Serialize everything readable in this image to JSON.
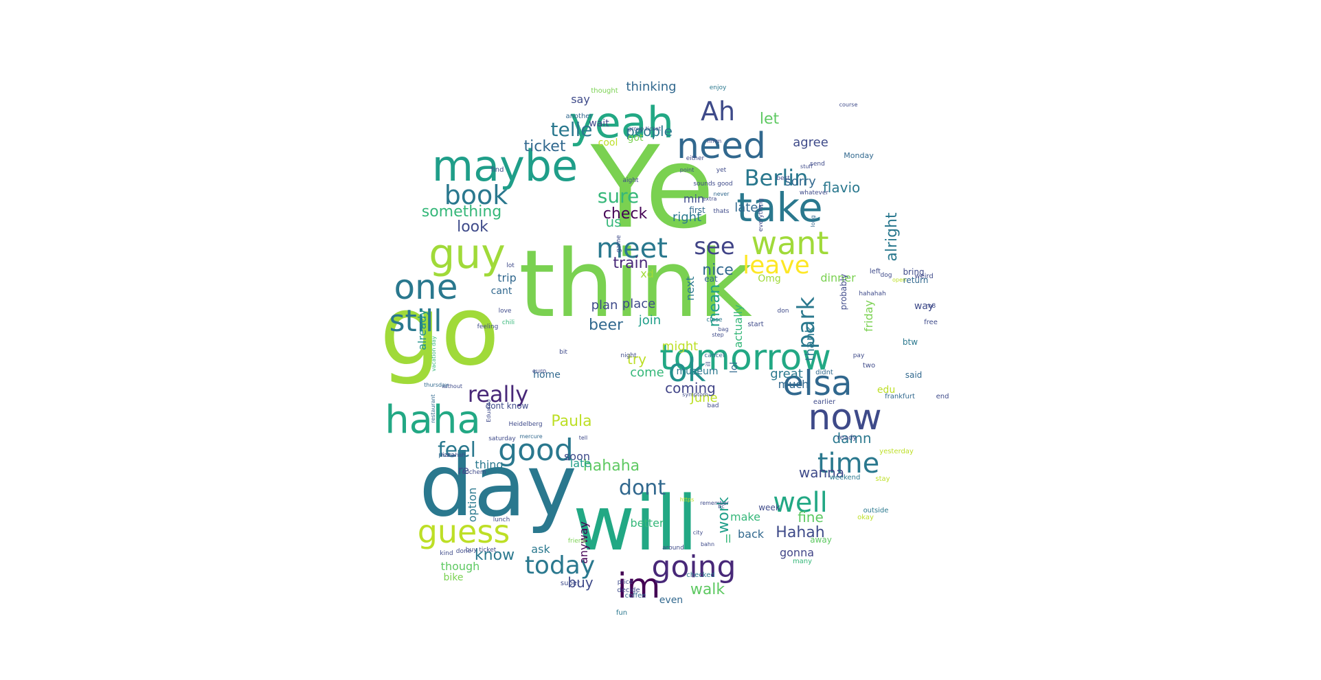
{
  "words": [
    {
      "text": "Ye",
      "color": "#7ad151"
    },
    {
      "text": "think",
      "color": "#7ad151"
    },
    {
      "text": "go",
      "color": "#a0da39"
    },
    {
      "text": "day",
      "color": "#2a788e"
    },
    {
      "text": "will",
      "color": "#22a884"
    },
    {
      "text": "yeah",
      "color": "#22a884"
    },
    {
      "text": "maybe",
      "color": "#1f9e89"
    },
    {
      "text": "take",
      "color": "#2a788e"
    },
    {
      "text": "guy",
      "color": "#a0da39"
    },
    {
      "text": "one",
      "color": "#2a788e"
    },
    {
      "text": "tomorrow",
      "color": "#22a884"
    },
    {
      "text": "haha",
      "color": "#22a884"
    },
    {
      "text": "now",
      "color": "#3e4a89"
    },
    {
      "text": "elsa",
      "color": "#31688e"
    },
    {
      "text": "need",
      "color": "#31688e"
    },
    {
      "text": "want",
      "color": "#a0da39"
    },
    {
      "text": "im",
      "color": "#440154"
    },
    {
      "text": "still",
      "color": "#2a788e"
    },
    {
      "text": "guess",
      "color": "#bddf26"
    },
    {
      "text": "ok",
      "color": "#21918c"
    },
    {
      "text": "meet",
      "color": "#2a788e"
    },
    {
      "text": "good",
      "color": "#2a788e"
    },
    {
      "text": "going",
      "color": "#482878"
    },
    {
      "text": "well",
      "color": "#22a884"
    },
    {
      "text": "time",
      "color": "#2a788e"
    },
    {
      "text": "Ah",
      "color": "#3e4a89"
    },
    {
      "text": "book",
      "color": "#2a788e"
    },
    {
      "text": "today",
      "color": "#2a788e"
    },
    {
      "text": "leave",
      "color": "#fde725"
    },
    {
      "text": "Berlin",
      "color": "#2a788e"
    },
    {
      "text": "see",
      "color": "#414487"
    },
    {
      "text": "park",
      "color": "#2a788e"
    },
    {
      "text": "really",
      "color": "#482878"
    },
    {
      "text": "feel",
      "color": "#2a788e"
    },
    {
      "text": "telle",
      "color": "#2a788e"
    },
    {
      "text": "dont",
      "color": "#31688e"
    },
    {
      "text": "sure",
      "color": "#35b779"
    },
    {
      "text": "hahaha",
      "color": "#5ec962"
    },
    {
      "text": "ticket",
      "color": "#31688e"
    },
    {
      "text": "something",
      "color": "#35b779"
    },
    {
      "text": "Paula",
      "color": "#bddf26"
    },
    {
      "text": "Hahah",
      "color": "#3e4a89"
    },
    {
      "text": "know",
      "color": "#2a788e"
    },
    {
      "text": "walk",
      "color": "#5ec962"
    },
    {
      "text": "alright",
      "color": "#2a788e"
    },
    {
      "text": "nice",
      "color": "#31688e"
    },
    {
      "text": "mean",
      "color": "#1f9e89"
    },
    {
      "text": "train",
      "color": "#482878"
    },
    {
      "text": "look",
      "color": "#3e4a89"
    },
    {
      "text": "beer",
      "color": "#31688e"
    },
    {
      "text": "fine",
      "color": "#5ec962"
    },
    {
      "text": "check",
      "color": "#440154"
    },
    {
      "text": "damn",
      "color": "#2a788e"
    },
    {
      "text": "let",
      "color": "#5ec962"
    },
    {
      "text": "wanna",
      "color": "#3e4a89"
    },
    {
      "text": "work",
      "color": "#1f9e89"
    },
    {
      "text": "coming",
      "color": "#414487"
    },
    {
      "text": "buy",
      "color": "#3e4a89"
    },
    {
      "text": "people",
      "color": "#2a788e"
    },
    {
      "text": "sorry",
      "color": "#31688e"
    },
    {
      "text": "flavio",
      "color": "#2a788e"
    },
    {
      "text": "agree",
      "color": "#3e4a89"
    },
    {
      "text": "try",
      "color": "#bddf26"
    },
    {
      "text": "us",
      "color": "#35b779"
    },
    {
      "text": "thinking",
      "color": "#31688e"
    },
    {
      "text": "say",
      "color": "#3e4a89"
    },
    {
      "text": "later",
      "color": "#31688e"
    },
    {
      "text": "min",
      "color": "#3e4a89"
    },
    {
      "text": "join",
      "color": "#1f9e89"
    },
    {
      "text": "xd",
      "color": "#a0da39"
    },
    {
      "text": "plan",
      "color": "#3e4a89"
    },
    {
      "text": "place",
      "color": "#3e4a89"
    },
    {
      "text": "right",
      "color": "#2a788e"
    },
    {
      "text": "might",
      "color": "#bddf26"
    },
    {
      "text": "come",
      "color": "#35b779"
    },
    {
      "text": "June",
      "color": "#bddf26"
    },
    {
      "text": "great",
      "color": "#2a788e"
    },
    {
      "text": "much",
      "color": "#31688e"
    },
    {
      "text": "thank",
      "color": "#2a788e"
    },
    {
      "text": "friday",
      "color": "#7ad151"
    },
    {
      "text": "dinner",
      "color": "#7ad151"
    },
    {
      "text": "Omg",
      "color": "#a0da39"
    },
    {
      "text": "trip",
      "color": "#31688e"
    },
    {
      "text": "cant",
      "color": "#31688e"
    },
    {
      "text": "soon",
      "color": "#3e4a89"
    },
    {
      "text": "late",
      "color": "#1f9e89"
    },
    {
      "text": "thing",
      "color": "#2a788e"
    },
    {
      "text": "re",
      "color": "#3e4a89"
    },
    {
      "text": "option",
      "color": "#2a788e"
    },
    {
      "text": "already",
      "color": "#21918c"
    },
    {
      "text": "ask",
      "color": "#2a788e"
    },
    {
      "text": "though",
      "color": "#5ec962"
    },
    {
      "text": "bike",
      "color": "#7ad151"
    },
    {
      "text": "anyway",
      "color": "#440154"
    },
    {
      "text": "better",
      "color": "#35b779"
    },
    {
      "text": "make",
      "color": "#35b779"
    },
    {
      "text": "back",
      "color": "#31688e"
    },
    {
      "text": "gonna",
      "color": "#414487"
    },
    {
      "text": "ll",
      "color": "#35b779"
    },
    {
      "text": "even",
      "color": "#31688e"
    },
    {
      "text": "edu",
      "color": "#bddf26"
    },
    {
      "text": "way",
      "color": "#3e4a89"
    },
    {
      "text": "actually",
      "color": "#35b779"
    },
    {
      "text": "next",
      "color": "#2a788e"
    },
    {
      "text": "home",
      "color": "#31688e"
    },
    {
      "text": "said",
      "color": "#31688e"
    },
    {
      "text": "got",
      "color": "#7ad151"
    },
    {
      "text": "wait",
      "color": "#3e4a89"
    },
    {
      "text": "cool",
      "color": "#bddf26"
    },
    {
      "text": "first",
      "color": "#31688e"
    },
    {
      "text": "probably",
      "color": "#3e4a89"
    },
    {
      "text": "bring",
      "color": "#3e4a89"
    },
    {
      "text": "return",
      "color": "#31688e"
    },
    {
      "text": "away",
      "color": "#5ec962"
    },
    {
      "text": "week",
      "color": "#3e4a89"
    },
    {
      "text": "museum",
      "color": "#2a788e"
    },
    {
      "text": "lol",
      "color": "#31688e"
    },
    {
      "text": "eat",
      "color": "#31688e"
    },
    {
      "text": "start",
      "color": "#3e4a89"
    },
    {
      "text": "dont know",
      "color": "#3e4a89"
    },
    {
      "text": "Monday",
      "color": "#31688e"
    },
    {
      "text": "find",
      "color": "#3e4a89"
    },
    {
      "text": "another",
      "color": "#31688e"
    },
    {
      "text": "thought",
      "color": "#7ad151"
    },
    {
      "text": "enjoy",
      "color": "#2a788e"
    },
    {
      "text": "free",
      "color": "#3e4a89"
    },
    {
      "text": "btw",
      "color": "#2a788e"
    },
    {
      "text": "two",
      "color": "#3e4a89"
    },
    {
      "text": "end",
      "color": "#3e4a89"
    },
    {
      "text": "frankfurt",
      "color": "#31688e"
    },
    {
      "text": "earlier",
      "color": "#3e4a89"
    },
    {
      "text": "didnt",
      "color": "#31688e"
    },
    {
      "text": "ready",
      "color": "#3e4a89"
    },
    {
      "text": "yesterday",
      "color": "#bddf26"
    },
    {
      "text": "weekend",
      "color": "#2a788e"
    },
    {
      "text": "stay",
      "color": "#bddf26"
    },
    {
      "text": "outside",
      "color": "#2a788e"
    },
    {
      "text": "okay",
      "color": "#bddf26"
    },
    {
      "text": "many",
      "color": "#35b779"
    },
    {
      "text": "checked",
      "color": "#2a788e"
    },
    {
      "text": "coffee",
      "color": "#31688e"
    },
    {
      "text": "fun",
      "color": "#2a788e"
    },
    {
      "text": "decide",
      "color": "#3e4a89"
    },
    {
      "text": "super",
      "color": "#3e4a89"
    },
    {
      "text": "price",
      "color": "#3e4a89"
    },
    {
      "text": "around",
      "color": "#3e4a89"
    },
    {
      "text": "friend",
      "color": "#7ad151"
    },
    {
      "text": "lunch",
      "color": "#3e4a89"
    },
    {
      "text": "done",
      "color": "#3e4a89"
    },
    {
      "text": "kind",
      "color": "#3e4a89"
    },
    {
      "text": "pizza",
      "color": "#31688e"
    },
    {
      "text": "love",
      "color": "#3e4a89"
    },
    {
      "text": "chili",
      "color": "#35b779"
    },
    {
      "text": "feeling",
      "color": "#3e4a89"
    },
    {
      "text": "lot",
      "color": "#3e4a89"
    },
    {
      "text": "bit",
      "color": "#3e4a89"
    },
    {
      "text": "euro",
      "color": "#3e4a89"
    },
    {
      "text": "without",
      "color": "#3e4a89"
    },
    {
      "text": "thursday",
      "color": "#31688e"
    },
    {
      "text": "restaurant",
      "color": "#31688e"
    },
    {
      "text": "vacation day",
      "color": "#35b779"
    },
    {
      "text": "Eduardo",
      "color": "#3e4a89"
    },
    {
      "text": "Heidelberg",
      "color": "#3e4a89"
    },
    {
      "text": "mercure",
      "color": "#31688e"
    },
    {
      "text": "saturday",
      "color": "#3e4a89"
    },
    {
      "text": "tell",
      "color": "#3e4a89"
    },
    {
      "text": "symptom",
      "color": "#3e4a89"
    },
    {
      "text": "night",
      "color": "#3e4a89"
    },
    {
      "text": "bad",
      "color": "#3e4a89"
    },
    {
      "text": "cancel",
      "color": "#31688e"
    },
    {
      "text": "close",
      "color": "#2a788e"
    },
    {
      "text": "step",
      "color": "#3e4a89"
    },
    {
      "text": "bag",
      "color": "#3e4a89"
    },
    {
      "text": "game",
      "color": "#3e4a89"
    },
    {
      "text": "either",
      "color": "#3e4a89"
    },
    {
      "text": "point",
      "color": "#3e4a89"
    },
    {
      "text": "sounds good",
      "color": "#3e4a89"
    },
    {
      "text": "extra",
      "color": "#3e4a89"
    },
    {
      "text": "never",
      "color": "#31688e"
    },
    {
      "text": "thats",
      "color": "#3e4a89"
    },
    {
      "text": "send",
      "color": "#3e4a89"
    },
    {
      "text": "whatever",
      "color": "#3e4a89"
    },
    {
      "text": "everything",
      "color": "#3e4a89"
    },
    {
      "text": "stuff",
      "color": "#3e4a89"
    },
    {
      "text": "long",
      "color": "#31688e"
    },
    {
      "text": "dog",
      "color": "#3e4a89"
    },
    {
      "text": "open",
      "color": "#bddf26"
    },
    {
      "text": "left",
      "color": "#3e4a89"
    },
    {
      "text": "weird",
      "color": "#3e4a89"
    },
    {
      "text": "hahahah",
      "color": "#3e4a89"
    },
    {
      "text": "bc",
      "color": "#3e4a89"
    },
    {
      "text": "remember",
      "color": "#3e4a89"
    },
    {
      "text": "city",
      "color": "#3e4a89"
    },
    {
      "text": "course",
      "color": "#3e4a89"
    },
    {
      "text": "yet",
      "color": "#3e4a89"
    },
    {
      "text": "hmm",
      "color": "#3e4a89"
    },
    {
      "text": "group ticket",
      "color": "#3e4a89"
    },
    {
      "text": "best",
      "color": "#3e4a89"
    },
    {
      "text": "ill",
      "color": "#3e4a89"
    },
    {
      "text": "don",
      "color": "#3e4a89"
    },
    {
      "text": "m8",
      "color": "#3e4a89"
    },
    {
      "text": "pay",
      "color": "#3e4a89"
    },
    {
      "text": "cochem",
      "color": "#3e4a89"
    },
    {
      "text": "https",
      "color": "#bddf26"
    },
    {
      "text": "aight",
      "color": "#3e4a89"
    },
    {
      "text": "hahahah",
      "color": "#3e4a89"
    },
    {
      "text": "buy ticket",
      "color": "#3e4a89"
    },
    {
      "text": "bahn",
      "color": "#3e4a89"
    }
  ]
}
